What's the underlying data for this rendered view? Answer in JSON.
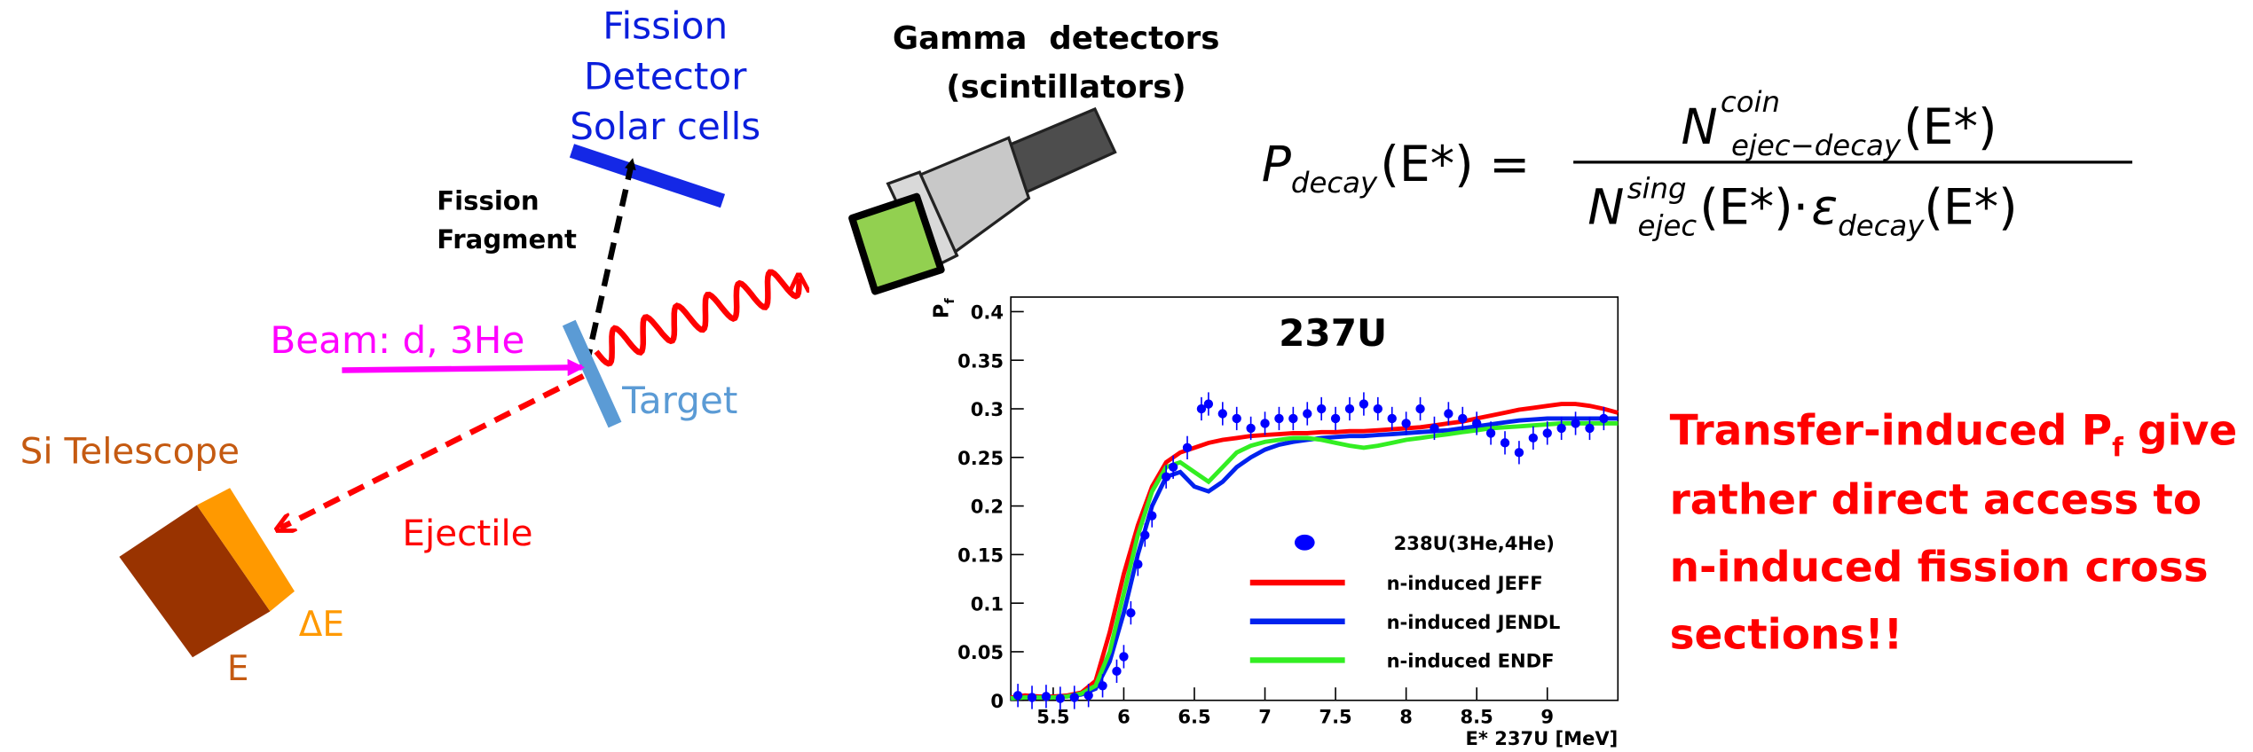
{
  "diagram": {
    "fission_detector": [
      "Fission",
      "Detector",
      "Solar cells"
    ],
    "gamma_detectors": [
      "Gamma  detectors",
      "(scintillators)"
    ],
    "fission_fragment": [
      "Fission",
      "Fragment"
    ],
    "beam": "Beam: d, 3He",
    "target": "Target",
    "si_telescope": "Si Telescope",
    "ejectile": "Ejectile",
    "delta_e": "ΔE",
    "e": "E"
  },
  "formula": {
    "lhs": "P",
    "lhs_sub": "decay",
    "lhs_arg": "(E*) =",
    "num": "N",
    "num_sup": "coin",
    "num_sub": "ejec−decay",
    "num_arg": "(E*)",
    "den": "N",
    "den_sup": "sing",
    "den_sub": "ejec",
    "den_arg": "(E*)·",
    "eps": "ε",
    "eps_sub": "decay",
    "eps_arg": "(E*)"
  },
  "note": {
    "before_sub": "Transfer-induced P",
    "sub": "f",
    "after_sub": "give",
    "lines": [
      "rather direct access to",
      "n-induced fission cross",
      "sections!!"
    ]
  },
  "chart_data": {
    "type": "line",
    "title": "237U",
    "x_label": "E* 237U [MeV]",
    "y_label": "P",
    "y_label_sub": "f",
    "x": [
      5.2,
      5.3,
      5.4,
      5.5,
      5.6,
      5.7,
      5.8,
      5.9,
      6.0,
      6.1,
      6.2,
      6.3,
      6.4,
      6.5,
      6.6,
      6.7,
      6.8,
      6.9,
      7.0,
      7.1,
      7.2,
      7.3,
      7.4,
      7.5,
      7.6,
      7.7,
      7.8,
      7.9,
      8.0,
      8.1,
      8.2,
      8.3,
      8.4,
      8.5,
      8.6,
      8.7,
      8.8,
      8.9,
      9.0,
      9.1,
      9.2,
      9.3,
      9.4,
      9.5
    ],
    "series": [
      {
        "name": "238U(3He,4He)",
        "color": "#0000ff",
        "style": "points",
        "x": [
          5.25,
          5.35,
          5.45,
          5.55,
          5.65,
          5.75,
          5.85,
          5.95,
          6.0,
          6.05,
          6.1,
          6.15,
          6.2,
          6.3,
          6.35,
          6.45,
          6.55,
          6.6,
          6.7,
          6.8,
          6.9,
          7.0,
          7.1,
          7.2,
          7.3,
          7.4,
          7.5,
          7.6,
          7.7,
          7.8,
          7.9,
          8.0,
          8.1,
          8.2,
          8.3,
          8.4,
          8.5,
          8.6,
          8.7,
          8.8,
          8.9,
          9.0,
          9.1,
          9.2,
          9.3,
          9.4
        ],
        "values": [
          0.005,
          0.003,
          0.004,
          0.002,
          0.003,
          0.005,
          0.015,
          0.03,
          0.045,
          0.09,
          0.14,
          0.17,
          0.19,
          0.23,
          0.24,
          0.26,
          0.3,
          0.305,
          0.295,
          0.29,
          0.28,
          0.285,
          0.29,
          0.29,
          0.295,
          0.3,
          0.29,
          0.3,
          0.305,
          0.3,
          0.29,
          0.285,
          0.3,
          0.28,
          0.295,
          0.29,
          0.285,
          0.275,
          0.265,
          0.255,
          0.27,
          0.275,
          0.28,
          0.285,
          0.28,
          0.29
        ],
        "errors": [
          0.012,
          0.012,
          0.012,
          0.012,
          0.012,
          0.012,
          0.012,
          0.012,
          0.012,
          0.012,
          0.012,
          0.012,
          0.012,
          0.012,
          0.012,
          0.012,
          0.012,
          0.012,
          0.012,
          0.012,
          0.012,
          0.012,
          0.012,
          0.012,
          0.012,
          0.012,
          0.012,
          0.012,
          0.012,
          0.012,
          0.012,
          0.012,
          0.012,
          0.012,
          0.012,
          0.012,
          0.012,
          0.012,
          0.012,
          0.012,
          0.012,
          0.012,
          0.012,
          0.012,
          0.012,
          0.012
        ]
      },
      {
        "name": "n-induced JEFF",
        "color": "#ff0000",
        "style": "line",
        "values": [
          0.003,
          0.005,
          0.004,
          0.004,
          0.005,
          0.008,
          0.02,
          0.07,
          0.13,
          0.18,
          0.22,
          0.245,
          0.255,
          0.26,
          0.265,
          0.268,
          0.27,
          0.272,
          0.273,
          0.274,
          0.275,
          0.275,
          0.276,
          0.276,
          0.277,
          0.277,
          0.278,
          0.279,
          0.28,
          0.281,
          0.283,
          0.285,
          0.287,
          0.29,
          0.293,
          0.296,
          0.299,
          0.301,
          0.303,
          0.305,
          0.305,
          0.303,
          0.3,
          0.296
        ]
      },
      {
        "name": "n-induced JENDL",
        "color": "#0022ee",
        "style": "line",
        "values": [
          0.002,
          0.003,
          0.003,
          0.003,
          0.004,
          0.006,
          0.012,
          0.04,
          0.09,
          0.15,
          0.2,
          0.23,
          0.235,
          0.22,
          0.215,
          0.225,
          0.24,
          0.25,
          0.258,
          0.263,
          0.266,
          0.268,
          0.27,
          0.271,
          0.272,
          0.272,
          0.273,
          0.274,
          0.275,
          0.276,
          0.277,
          0.278,
          0.28,
          0.282,
          0.284,
          0.286,
          0.288,
          0.289,
          0.29,
          0.29,
          0.29,
          0.29,
          0.29,
          0.29
        ]
      },
      {
        "name": "n-induced ENDF",
        "color": "#33ee22",
        "style": "line",
        "values": [
          0.002,
          0.003,
          0.003,
          0.003,
          0.004,
          0.007,
          0.015,
          0.05,
          0.11,
          0.17,
          0.215,
          0.24,
          0.245,
          0.235,
          0.225,
          0.24,
          0.255,
          0.262,
          0.266,
          0.268,
          0.27,
          0.27,
          0.268,
          0.265,
          0.262,
          0.26,
          0.262,
          0.265,
          0.268,
          0.27,
          0.272,
          0.274,
          0.276,
          0.278,
          0.28,
          0.281,
          0.282,
          0.283,
          0.284,
          0.285,
          0.285,
          0.285,
          0.285,
          0.285
        ]
      }
    ],
    "xlim": [
      5.2,
      9.5
    ],
    "ylim": [
      0,
      0.415
    ],
    "xticks": [
      5.5,
      6,
      6.5,
      7,
      7.5,
      8,
      8.5,
      9
    ],
    "yticks": [
      0,
      0.05,
      0.1,
      0.15,
      0.2,
      0.25,
      0.3,
      0.35,
      0.4
    ]
  }
}
